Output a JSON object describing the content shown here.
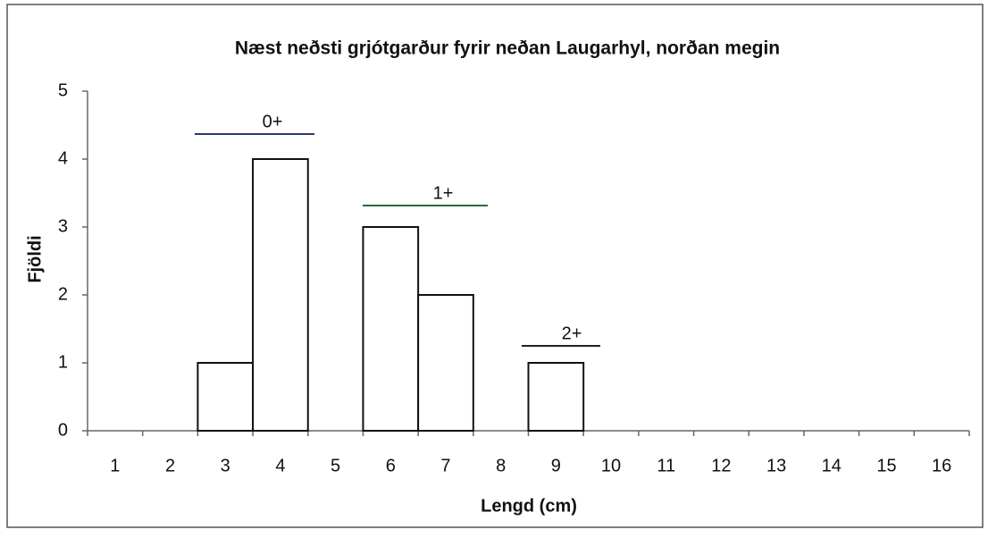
{
  "chart_data": {
    "type": "bar",
    "title": "Næst neðsti grjótgarður fyrir neðan Laugarhyl, norðan megin",
    "x_label": "Lengd (cm)",
    "y_label": "Fjöldi",
    "categories": [
      "1",
      "2",
      "3",
      "4",
      "5",
      "6",
      "7",
      "8",
      "9",
      "10",
      "11",
      "12",
      "13",
      "14",
      "15",
      "16"
    ],
    "values": [
      0,
      0,
      1,
      4,
      0,
      3,
      2,
      0,
      1,
      0,
      0,
      0,
      0,
      0,
      0,
      0
    ],
    "color": "#ffffff",
    "ylim": [
      0,
      5
    ],
    "yticks": [
      0,
      1,
      2,
      3,
      4,
      5
    ],
    "grid": false,
    "annotations": [
      "0+",
      "1+",
      "2+"
    ]
  }
}
